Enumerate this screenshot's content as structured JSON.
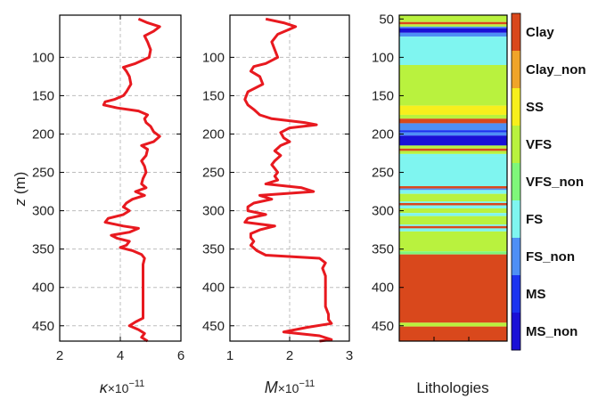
{
  "colors": {
    "curve": "#e8191f",
    "grid": "#bdbdbd",
    "Clay": "#d9481c",
    "Clay_non": "#f0a42a",
    "SS": "#f7ef1d",
    "VFS": "#b9f23e",
    "VFS_non": "#7ff77a",
    "FS": "#7ff5f0",
    "FS_non": "#4e8ff5",
    "MS": "#1b33f0",
    "MS_non": "#1a10d6"
  },
  "chart_data": [
    {
      "type": "line",
      "name": "kappa",
      "xlabel_main": "κ",
      "xlabel_mult": "×10",
      "xlabel_exp": "−11",
      "ylabel_main": "z",
      "ylabel_unit": " (m)",
      "xlim": [
        2,
        6
      ],
      "ylim": [
        45,
        470
      ],
      "ylim_reversed": true,
      "xticks": [
        "2",
        "4",
        "6"
      ],
      "yticks": [
        "100",
        "150",
        "200",
        "250",
        "300",
        "350",
        "400",
        "450"
      ],
      "grid": true,
      "series": [
        {
          "depth": [
            50,
            55,
            60,
            66,
            72,
            80,
            90,
            100,
            108,
            113,
            118,
            125,
            135,
            145,
            150,
            155,
            158,
            162,
            166,
            170,
            175,
            180,
            185,
            190,
            197,
            203,
            210,
            215,
            220,
            228,
            235,
            242,
            250,
            258,
            265,
            270,
            275,
            280,
            285,
            290,
            295,
            300,
            305,
            310,
            315,
            320,
            323,
            328,
            332,
            336,
            340,
            345,
            348,
            352,
            357,
            362,
            370,
            380,
            390,
            400,
            410,
            420,
            430,
            440,
            445,
            450,
            455,
            460,
            465,
            470
          ],
          "values": [
            4.6,
            4.9,
            5.3,
            5.1,
            4.8,
            4.9,
            5.0,
            4.95,
            4.5,
            4.1,
            4.2,
            4.3,
            4.35,
            4.2,
            4.1,
            3.8,
            3.5,
            3.45,
            3.9,
            4.6,
            4.9,
            4.8,
            4.85,
            5.0,
            5.1,
            5.3,
            5.1,
            4.7,
            4.9,
            4.85,
            4.7,
            4.8,
            4.85,
            4.75,
            4.7,
            4.85,
            4.5,
            4.8,
            4.4,
            4.2,
            4.1,
            4.3,
            4.1,
            3.6,
            3.5,
            4.1,
            4.6,
            4.3,
            3.7,
            3.9,
            4.3,
            4.2,
            4.0,
            4.4,
            4.7,
            4.8,
            4.75,
            4.75,
            4.75,
            4.75,
            4.75,
            4.75,
            4.75,
            4.75,
            4.5,
            4.3,
            4.6,
            4.8,
            4.7,
            4.9
          ]
        }
      ]
    },
    {
      "type": "line",
      "name": "M",
      "xlabel_main": "M",
      "xlabel_mult": "×10",
      "xlabel_exp": "−11",
      "xlim": [
        1,
        3
      ],
      "ylim": [
        45,
        470
      ],
      "ylim_reversed": true,
      "xticks": [
        "1",
        "2",
        "3"
      ],
      "yticks": [
        "100",
        "150",
        "200",
        "250",
        "300",
        "350",
        "400",
        "450"
      ],
      "grid": true,
      "series": [
        {
          "depth": [
            50,
            55,
            60,
            65,
            70,
            80,
            90,
            100,
            108,
            112,
            118,
            125,
            135,
            145,
            155,
            162,
            168,
            175,
            180,
            185,
            188,
            192,
            198,
            205,
            210,
            215,
            222,
            228,
            235,
            240,
            245,
            250,
            255,
            260,
            265,
            270,
            275,
            280,
            285,
            290,
            295,
            300,
            305,
            310,
            315,
            320,
            325,
            330,
            335,
            340,
            345,
            352,
            358,
            362,
            368,
            375,
            385,
            395,
            405,
            415,
            425,
            435,
            442,
            447,
            452,
            458,
            463,
            468,
            470
          ],
          "values": [
            1.6,
            1.9,
            2.1,
            1.95,
            1.8,
            1.7,
            1.75,
            1.8,
            1.6,
            1.4,
            1.35,
            1.5,
            1.55,
            1.3,
            1.25,
            1.3,
            1.4,
            1.5,
            1.7,
            2.25,
            2.45,
            2.0,
            1.85,
            1.9,
            2.0,
            1.85,
            1.75,
            1.85,
            1.75,
            1.7,
            1.75,
            1.8,
            1.75,
            1.8,
            1.6,
            2.2,
            2.4,
            1.5,
            1.7,
            1.4,
            1.3,
            1.3,
            1.6,
            1.3,
            1.25,
            1.75,
            1.5,
            1.35,
            1.35,
            1.4,
            1.35,
            1.45,
            1.6,
            2.5,
            2.6,
            2.55,
            2.6,
            2.6,
            2.6,
            2.6,
            2.6,
            2.65,
            2.65,
            2.7,
            2.3,
            1.9,
            2.5,
            2.7,
            2.5
          ]
        }
      ]
    },
    {
      "type": "heatmap",
      "name": "lithology",
      "xlabel": "Lithologies",
      "ylim": [
        45,
        470
      ],
      "ylim_reversed": true,
      "yticks": [
        "50",
        "100",
        "150",
        "200",
        "250",
        "300",
        "350",
        "400",
        "450"
      ],
      "legend": [
        "Clay",
        "Clay_non",
        "SS",
        "VFS",
        "VFS_non",
        "FS",
        "FS_non",
        "MS",
        "MS_non"
      ],
      "bands": [
        {
          "top": 45,
          "bottom": 54,
          "lith": "VFS"
        },
        {
          "top": 54,
          "bottom": 57,
          "lith": "Clay"
        },
        {
          "top": 57,
          "bottom": 60,
          "lith": "VFS"
        },
        {
          "top": 60,
          "bottom": 62,
          "lith": "FS_non"
        },
        {
          "top": 62,
          "bottom": 68,
          "lith": "MS_non"
        },
        {
          "top": 68,
          "bottom": 73,
          "lith": "FS_non"
        },
        {
          "top": 73,
          "bottom": 110,
          "lith": "FS"
        },
        {
          "top": 110,
          "bottom": 163,
          "lith": "VFS"
        },
        {
          "top": 163,
          "bottom": 175,
          "lith": "SS"
        },
        {
          "top": 175,
          "bottom": 180,
          "lith": "VFS"
        },
        {
          "top": 180,
          "bottom": 186,
          "lith": "Clay"
        },
        {
          "top": 186,
          "bottom": 195,
          "lith": "FS_non"
        },
        {
          "top": 195,
          "bottom": 198,
          "lith": "MS"
        },
        {
          "top": 198,
          "bottom": 202,
          "lith": "FS_non"
        },
        {
          "top": 202,
          "bottom": 215,
          "lith": "MS_non"
        },
        {
          "top": 215,
          "bottom": 219,
          "lith": "VFS"
        },
        {
          "top": 219,
          "bottom": 222,
          "lith": "Clay"
        },
        {
          "top": 222,
          "bottom": 226,
          "lith": "VFS"
        },
        {
          "top": 226,
          "bottom": 229,
          "lith": "FS"
        },
        {
          "top": 229,
          "bottom": 268,
          "lith": "FS"
        },
        {
          "top": 268,
          "bottom": 271,
          "lith": "Clay"
        },
        {
          "top": 271,
          "bottom": 273,
          "lith": "FS_non"
        },
        {
          "top": 273,
          "bottom": 278,
          "lith": "FS"
        },
        {
          "top": 278,
          "bottom": 288,
          "lith": "VFS"
        },
        {
          "top": 288,
          "bottom": 290,
          "lith": "FS"
        },
        {
          "top": 290,
          "bottom": 293,
          "lith": "Clay"
        },
        {
          "top": 293,
          "bottom": 297,
          "lith": "FS"
        },
        {
          "top": 297,
          "bottom": 303,
          "lith": "VFS"
        },
        {
          "top": 303,
          "bottom": 307,
          "lith": "FS"
        },
        {
          "top": 307,
          "bottom": 318,
          "lith": "VFS"
        },
        {
          "top": 318,
          "bottom": 320,
          "lith": "FS"
        },
        {
          "top": 320,
          "bottom": 323,
          "lith": "Clay"
        },
        {
          "top": 323,
          "bottom": 327,
          "lith": "FS"
        },
        {
          "top": 327,
          "bottom": 353,
          "lith": "VFS"
        },
        {
          "top": 353,
          "bottom": 357,
          "lith": "VFS_non"
        },
        {
          "top": 357,
          "bottom": 446,
          "lith": "Clay"
        },
        {
          "top": 446,
          "bottom": 451,
          "lith": "VFS"
        },
        {
          "top": 451,
          "bottom": 470,
          "lith": "Clay"
        }
      ]
    }
  ]
}
